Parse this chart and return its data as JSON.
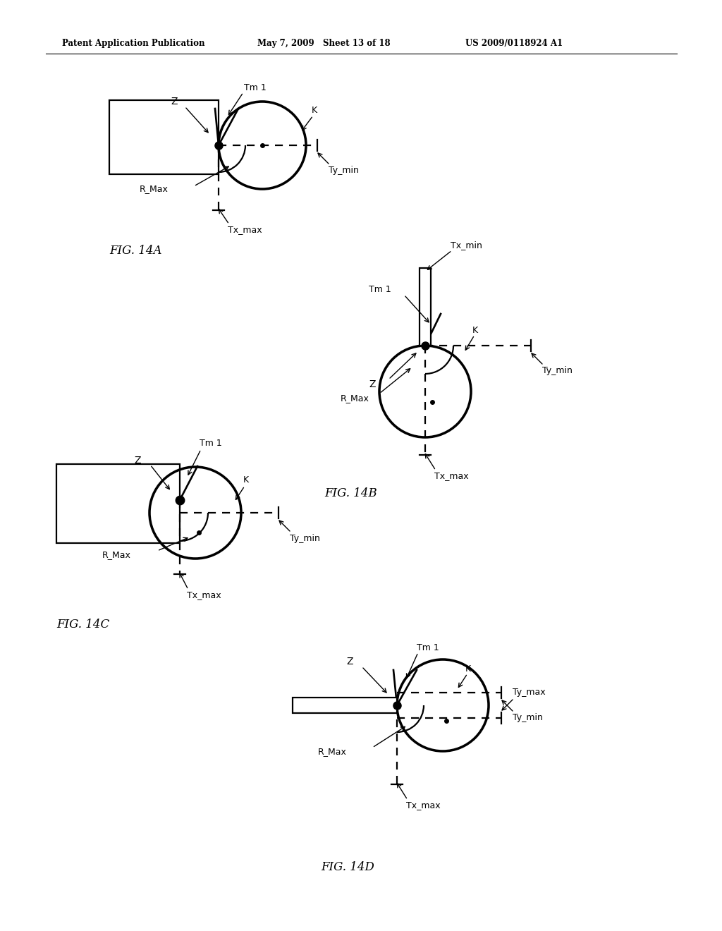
{
  "header_left": "Patent Application Publication",
  "header_mid": "May 7, 2009   Sheet 13 of 18",
  "header_right": "US 2009/0118924 A1",
  "background_color": "#ffffff",
  "text_color": "#000000"
}
